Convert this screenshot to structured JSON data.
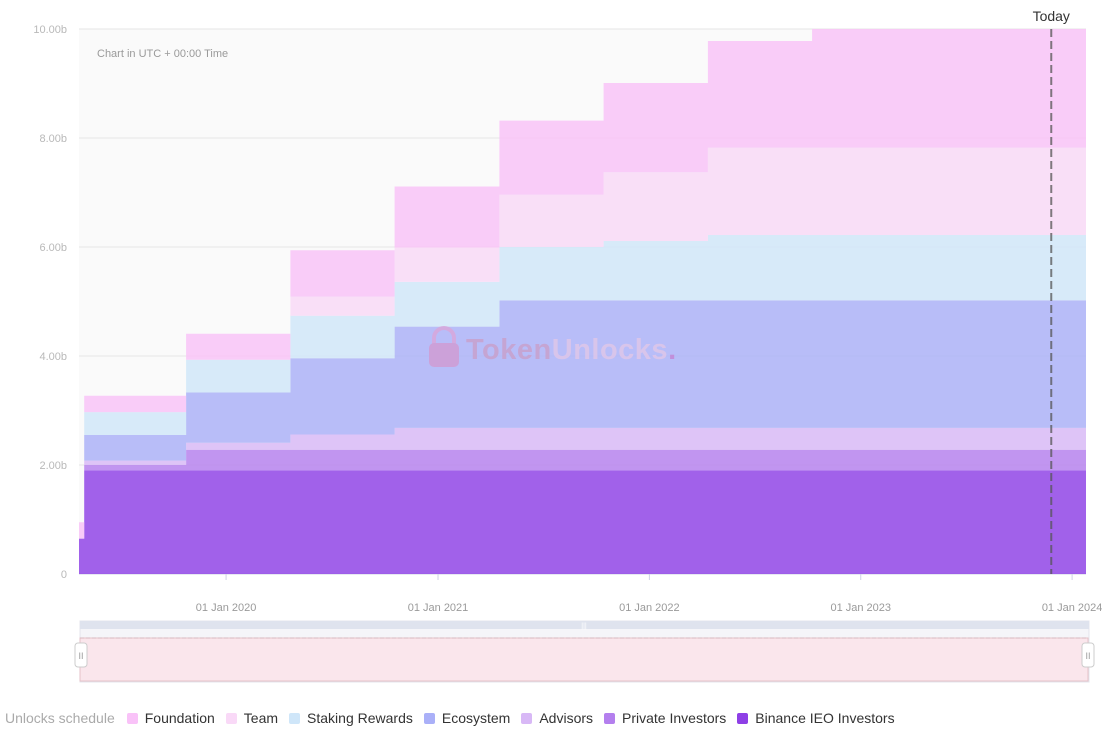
{
  "chart_data": {
    "type": "area",
    "stacked": true,
    "step": true,
    "note": "Chart in UTC + 00:00 Time",
    "watermark": {
      "part1": "Token",
      "part2": "Unlocks",
      "dot": "."
    },
    "y_ticks": [
      "0",
      "2.00b",
      "4.00b",
      "6.00b",
      "8.00b",
      "10.00b"
    ],
    "ylim": [
      0,
      10.0
    ],
    "x_ticks": [
      "01 Jan 2020",
      "01 Jan 2021",
      "01 Jan 2022",
      "01 Jan 2023",
      "01 Jan 2024"
    ],
    "today_label": "Today",
    "today_date": "2023-11-26",
    "grid": true,
    "legend_position": "bottom-left",
    "x": [
      "2019-04-22",
      "2019-05-01",
      "2019-10-24",
      "2020-04-21",
      "2020-10-18",
      "2021-04-17",
      "2021-10-14",
      "2022-04-12",
      "2022-10-09",
      "2023-04-06",
      "2024-01-25"
    ],
    "series": [
      {
        "name": "Binance IEO Investors",
        "color": "#8e3fe6",
        "values": [
          0.65,
          1.9,
          1.9,
          1.9,
          1.9,
          1.9,
          1.9,
          1.9,
          1.9,
          1.9,
          1.9
        ]
      },
      {
        "name": "Private Investors",
        "color": "#b47fee",
        "values": [
          0,
          0.1,
          0.38,
          0.38,
          0.38,
          0.38,
          0.38,
          0.38,
          0.38,
          0.38,
          0.38
        ]
      },
      {
        "name": "Advisors",
        "color": "#d8b8f6",
        "values": [
          0,
          0.08,
          0.13,
          0.28,
          0.4,
          0.4,
          0.4,
          0.4,
          0.4,
          0.4,
          0.4
        ]
      },
      {
        "name": "Ecosystem",
        "color": "#aab0f8",
        "values": [
          0,
          0.47,
          0.92,
          1.4,
          1.86,
          2.34,
          2.34,
          2.34,
          2.34,
          2.34,
          2.34
        ]
      },
      {
        "name": "Staking Rewards",
        "color": "#cfe6f9",
        "values": [
          0,
          0.42,
          0.6,
          0.78,
          0.82,
          0.98,
          1.09,
          1.2,
          1.2,
          1.2,
          1.2
        ]
      },
      {
        "name": "Team",
        "color": "#f9d9f7",
        "values": [
          0,
          0,
          0,
          0.35,
          0.63,
          0.96,
          1.26,
          1.6,
          1.6,
          1.6,
          1.6
        ]
      },
      {
        "name": "Foundation",
        "color": "#f9c2f8",
        "values": [
          0.3,
          0.3,
          0.48,
          0.85,
          1.12,
          1.36,
          1.64,
          1.96,
          2.18,
          2.18,
          2.18
        ]
      }
    ],
    "navigator": {
      "label": "navigator",
      "handle_glyph": "II"
    }
  },
  "legend": {
    "title": "Unlocks schedule",
    "items": [
      {
        "label": "Foundation",
        "color": "#f9c2f8"
      },
      {
        "label": "Team",
        "color": "#f9d9f7"
      },
      {
        "label": "Staking Rewards",
        "color": "#cfe6f9"
      },
      {
        "label": "Ecosystem",
        "color": "#aab0f8"
      },
      {
        "label": "Advisors",
        "color": "#d8b8f6"
      },
      {
        "label": "Private Investors",
        "color": "#b47fee"
      },
      {
        "label": "Binance IEO Investors",
        "color": "#8e3fe6"
      }
    ]
  }
}
